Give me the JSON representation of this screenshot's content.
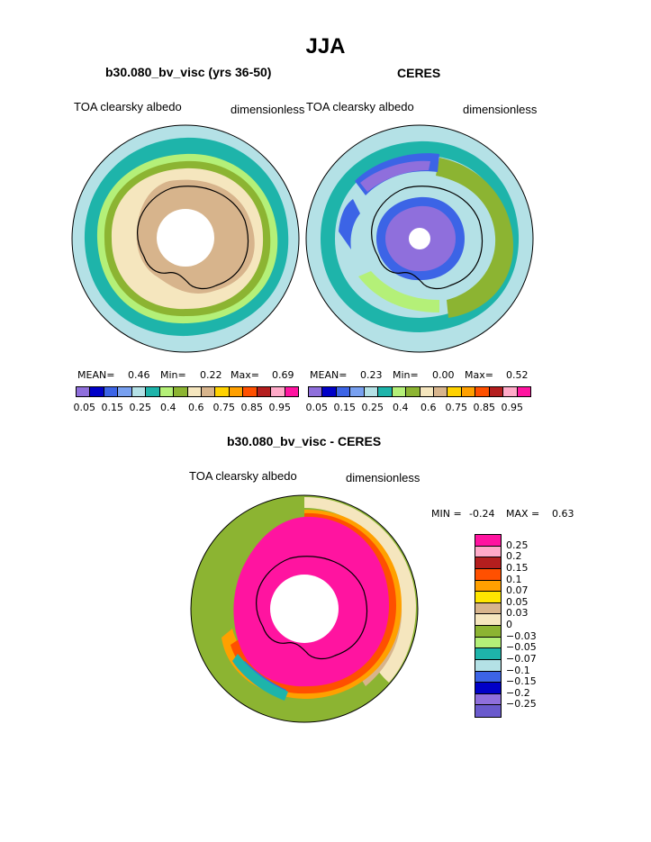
{
  "main_title": "JJA",
  "chart_data": [
    {
      "type": "polar-contour-map",
      "title": "b30.080_bv_visc (yrs 36-50)",
      "left_label": "TOA clearsky albedo",
      "right_label": "dimensionless",
      "stats": {
        "mean_label": "MEAN=",
        "mean": "0.46",
        "min_label": "Min=",
        "min": "0.22",
        "max_label": "Max=",
        "max": "0.69"
      },
      "levels": [
        "0.05",
        "0.15",
        "0.25",
        "0.4",
        "0.6",
        "0.75",
        "0.85",
        "0.95"
      ],
      "colors": [
        "#8f6fdc",
        "#0000c8",
        "#3c64e6",
        "#78a0f0",
        "#b4e1e6",
        "#1eb4aa",
        "#b4f078",
        "#8cb432",
        "#f5e6be",
        "#d7b48c",
        "#ffd200",
        "#ffa000",
        "#ff5000",
        "#b41e1e",
        "#ffaac8",
        "#ff14a0"
      ]
    },
    {
      "type": "polar-contour-map",
      "title": "CERES",
      "left_label": "TOA clearsky albedo",
      "right_label": "dimensionless",
      "stats": {
        "mean_label": "MEAN=",
        "mean": "0.23",
        "min_label": "Min=",
        "min": "0.00",
        "max_label": "Max=",
        "max": "0.52"
      },
      "levels": [
        "0.05",
        "0.15",
        "0.25",
        "0.4",
        "0.6",
        "0.75",
        "0.85",
        "0.95"
      ],
      "colors": [
        "#8f6fdc",
        "#0000c8",
        "#3c64e6",
        "#78a0f0",
        "#b4e1e6",
        "#1eb4aa",
        "#b4f078",
        "#8cb432",
        "#f5e6be",
        "#d7b48c",
        "#ffd200",
        "#ffa000",
        "#ff5000",
        "#b41e1e",
        "#ffaac8",
        "#ff14a0"
      ]
    },
    {
      "type": "polar-contour-map",
      "title": "b30.080_bv_visc - CERES",
      "left_label": "TOA clearsky albedo",
      "right_label": "dimensionless",
      "stats": {
        "min_label": "MIN =",
        "min": "-0.24",
        "max_label": "MAX =",
        "max": "0.63"
      },
      "levels": [
        "0.25",
        "0.2",
        "0.15",
        "0.1",
        "0.07",
        "0.05",
        "0.03",
        "0",
        "−0.03",
        "−0.05",
        "−0.07",
        "−0.1",
        "−0.15",
        "−0.2",
        "−0.25"
      ],
      "colors": [
        "#ff14a0",
        "#ffaac8",
        "#b41e1e",
        "#ff5000",
        "#ffa000",
        "#ffe600",
        "#d7b48c",
        "#f5e6be",
        "#8cb432",
        "#b4f078",
        "#1eb4aa",
        "#b4e1e6",
        "#3c64e6",
        "#0000c8",
        "#8f6fdc",
        "#6a5acd"
      ]
    }
  ]
}
